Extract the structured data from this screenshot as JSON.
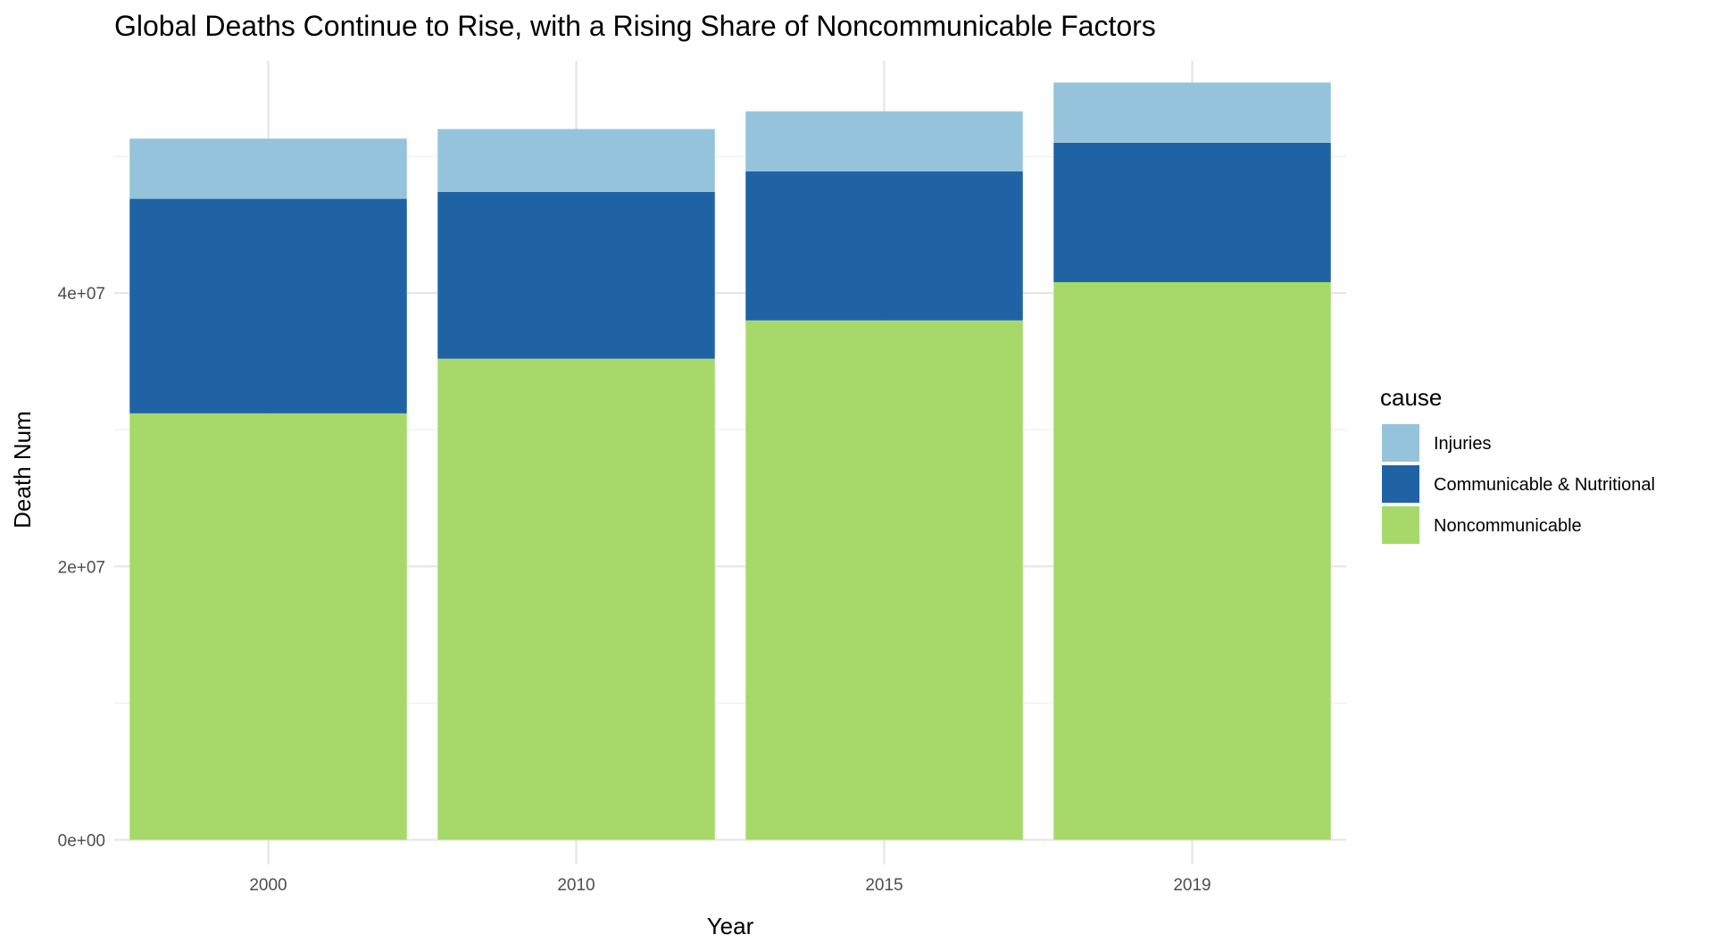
{
  "chart_data": {
    "type": "bar",
    "stacked": true,
    "title": "Global Deaths Continue to Rise, with a Rising Share of Noncommunicable Factors",
    "xlabel": "Year",
    "ylabel": "Death Num",
    "categories": [
      "2000",
      "2010",
      "2015",
      "2019"
    ],
    "ylim": [
      -1800000,
      57000000
    ],
    "yticks": [
      0,
      20000000,
      40000000
    ],
    "ytick_labels": [
      "0e+00",
      "2e+07",
      "4e+07"
    ],
    "grid": true,
    "legend": {
      "title": "cause",
      "position": "right"
    },
    "series": [
      {
        "name": "Noncommunicable",
        "color": "#a6d96a",
        "values": [
          31200000,
          35200000,
          38000000,
          40800000
        ]
      },
      {
        "name": "Communicable & Nutritional",
        "color": "#1f63a5",
        "values": [
          15700000,
          12200000,
          10900000,
          10200000
        ]
      },
      {
        "name": "Injuries",
        "color": "#95c3dc",
        "values": [
          4400000,
          4600000,
          4400000,
          4400000
        ]
      }
    ],
    "legend_order": [
      "Injuries",
      "Communicable & Nutritional",
      "Noncommunicable"
    ]
  }
}
